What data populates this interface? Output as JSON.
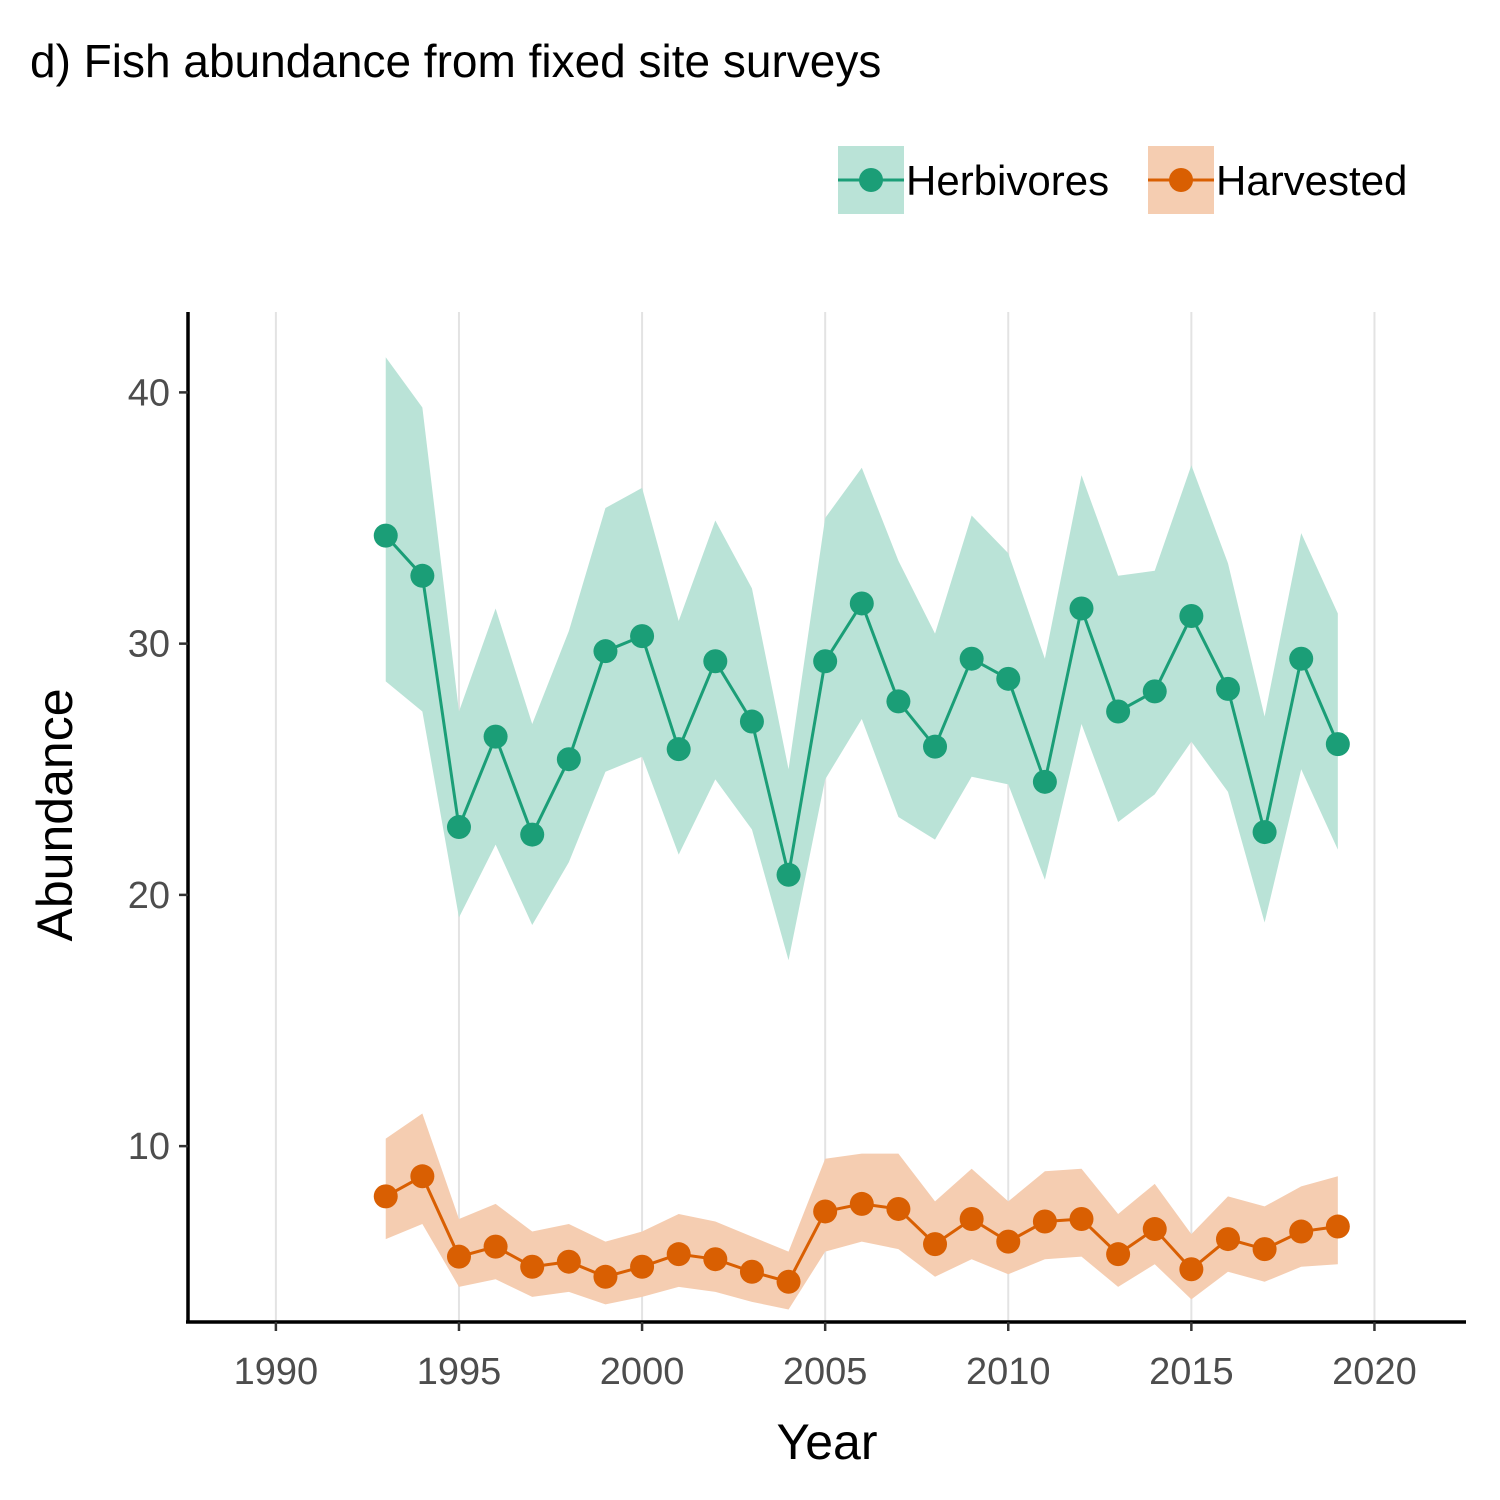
{
  "chart_data": {
    "type": "line",
    "title": "d) Fish abundance from fixed site surveys",
    "xlabel": "Year",
    "ylabel": "Abundance",
    "xlim": [
      1987.6,
      2022.5
    ],
    "ylim": [
      3,
      43.2
    ],
    "x_ticks": [
      1990,
      1995,
      2000,
      2005,
      2010,
      2015,
      2020
    ],
    "y_ticks": [
      10,
      20,
      30,
      40
    ],
    "grid": "vertical major gridlines",
    "legend_position": "top-right",
    "x": [
      1993,
      1994,
      1995,
      1996,
      1997,
      1998,
      1999,
      2000,
      2001,
      2002,
      2003,
      2004,
      2005,
      2006,
      2007,
      2008,
      2009,
      2010,
      2011,
      2012,
      2013,
      2014,
      2015,
      2016,
      2017,
      2018,
      2019
    ],
    "series": [
      {
        "name": "Herbivores",
        "color": "#1b9e77",
        "band_color": "#bae3d7",
        "values": [
          34.3,
          32.7,
          22.7,
          26.3,
          22.4,
          25.4,
          29.7,
          30.3,
          25.8,
          29.3,
          26.9,
          20.8,
          29.3,
          31.6,
          27.7,
          25.9,
          29.4,
          28.6,
          24.5,
          31.4,
          27.3,
          28.1,
          31.1,
          28.2,
          22.5,
          29.4,
          26.0
        ],
        "lower": [
          28.5,
          27.3,
          19.1,
          22.0,
          18.8,
          21.3,
          24.9,
          25.5,
          21.6,
          24.6,
          22.6,
          17.4,
          24.6,
          27.0,
          23.1,
          22.2,
          24.7,
          24.4,
          20.6,
          26.8,
          22.9,
          24.0,
          26.1,
          24.1,
          18.9,
          25.0,
          21.8
        ],
        "upper": [
          41.4,
          39.4,
          27.3,
          31.4,
          26.8,
          30.5,
          35.4,
          36.2,
          30.9,
          34.9,
          32.2,
          25.0,
          35.0,
          37.0,
          33.3,
          30.4,
          35.1,
          33.6,
          29.4,
          36.7,
          32.7,
          32.9,
          37.1,
          33.2,
          27.1,
          34.4,
          31.2
        ]
      },
      {
        "name": "Harvested",
        "color": "#d95f02",
        "band_color": "#f5cdb1",
        "values": [
          8.0,
          8.8,
          5.6,
          6.0,
          5.2,
          5.4,
          4.8,
          5.2,
          5.7,
          5.5,
          5.0,
          4.6,
          7.4,
          7.7,
          7.5,
          6.1,
          7.1,
          6.2,
          7.0,
          7.1,
          5.7,
          6.7,
          5.1,
          6.3,
          5.9,
          6.6,
          6.8
        ],
        "lower": [
          6.3,
          6.9,
          4.4,
          4.7,
          4.0,
          4.2,
          3.7,
          4.0,
          4.4,
          4.2,
          3.8,
          3.5,
          5.8,
          6.2,
          5.9,
          4.8,
          5.5,
          4.9,
          5.5,
          5.6,
          4.4,
          5.3,
          3.9,
          5.0,
          4.6,
          5.2,
          5.3
        ],
        "upper": [
          10.3,
          11.3,
          7.1,
          7.7,
          6.6,
          6.9,
          6.2,
          6.6,
          7.3,
          7.0,
          6.4,
          5.8,
          9.5,
          9.7,
          9.7,
          7.8,
          9.1,
          7.8,
          9.0,
          9.1,
          7.3,
          8.5,
          6.5,
          8.0,
          7.6,
          8.4,
          8.8
        ]
      }
    ]
  }
}
